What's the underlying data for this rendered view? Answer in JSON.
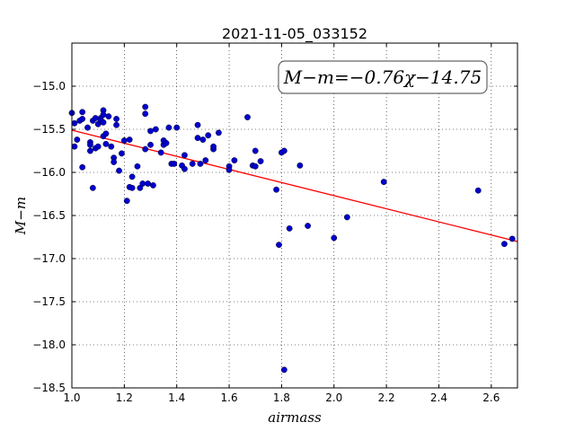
{
  "chart_data": {
    "type": "scatter",
    "title": "2021-11-05_033152",
    "xlabel": "airmass",
    "ylabel": "M−m",
    "xlim": [
      1.0,
      2.7
    ],
    "ylim": [
      -18.5,
      -14.5
    ],
    "y_inverted": true,
    "x_ticks": [
      "1.0",
      "1.2",
      "1.4",
      "1.6",
      "1.8",
      "2.0",
      "2.2",
      "2.4",
      "2.6"
    ],
    "y_ticks": [
      "−15.0",
      "−15.5",
      "−16.0",
      "−16.5",
      "−17.0",
      "−17.5",
      "−18.0",
      "−18.5"
    ],
    "grid": true,
    "annotation": "M−m=−0.76χ−14.75",
    "fit": {
      "slope": -0.76,
      "intercept": -14.75,
      "color": "#ff0000"
    },
    "point_color": "#0000cc",
    "points": [
      [
        1.0,
        -15.31
      ],
      [
        1.01,
        -15.43
      ],
      [
        1.01,
        -15.7
      ],
      [
        1.02,
        -15.62
      ],
      [
        1.03,
        -15.4
      ],
      [
        1.04,
        -15.3
      ],
      [
        1.04,
        -15.38
      ],
      [
        1.04,
        -15.94
      ],
      [
        1.06,
        -15.48
      ],
      [
        1.07,
        -15.65
      ],
      [
        1.07,
        -15.75
      ],
      [
        1.07,
        -15.68
      ],
      [
        1.08,
        -15.4
      ],
      [
        1.08,
        -16.18
      ],
      [
        1.09,
        -15.37
      ],
      [
        1.09,
        -15.72
      ],
      [
        1.1,
        -15.44
      ],
      [
        1.1,
        -15.7
      ],
      [
        1.11,
        -15.37
      ],
      [
        1.11,
        -15.4
      ],
      [
        1.12,
        -15.28
      ],
      [
        1.12,
        -15.33
      ],
      [
        1.12,
        -15.42
      ],
      [
        1.12,
        -15.58
      ],
      [
        1.13,
        -15.55
      ],
      [
        1.13,
        -15.67
      ],
      [
        1.14,
        -15.35
      ],
      [
        1.15,
        -15.7
      ],
      [
        1.16,
        -15.83
      ],
      [
        1.16,
        -15.88
      ],
      [
        1.17,
        -15.38
      ],
      [
        1.17,
        -15.45
      ],
      [
        1.18,
        -15.98
      ],
      [
        1.19,
        -15.78
      ],
      [
        1.2,
        -15.63
      ],
      [
        1.21,
        -16.33
      ],
      [
        1.22,
        -16.17
      ],
      [
        1.22,
        -15.62
      ],
      [
        1.23,
        -16.05
      ],
      [
        1.23,
        -16.18
      ],
      [
        1.25,
        -15.93
      ],
      [
        1.26,
        -16.18
      ],
      [
        1.27,
        -16.13
      ],
      [
        1.28,
        -15.73
      ],
      [
        1.28,
        -15.24
      ],
      [
        1.28,
        -15.32
      ],
      [
        1.29,
        -16.13
      ],
      [
        1.3,
        -15.68
      ],
      [
        1.3,
        -15.52
      ],
      [
        1.31,
        -16.15
      ],
      [
        1.32,
        -15.5
      ],
      [
        1.34,
        -15.77
      ],
      [
        1.35,
        -15.68
      ],
      [
        1.35,
        -15.63
      ],
      [
        1.36,
        -15.66
      ],
      [
        1.37,
        -15.48
      ],
      [
        1.38,
        -15.9
      ],
      [
        1.39,
        -15.9
      ],
      [
        1.4,
        -15.48
      ],
      [
        1.42,
        -15.92
      ],
      [
        1.43,
        -15.8
      ],
      [
        1.43,
        -15.96
      ],
      [
        1.46,
        -15.9
      ],
      [
        1.48,
        -15.45
      ],
      [
        1.48,
        -15.6
      ],
      [
        1.49,
        -15.9
      ],
      [
        1.5,
        -15.62
      ],
      [
        1.51,
        -15.86
      ],
      [
        1.52,
        -15.57
      ],
      [
        1.54,
        -15.73
      ],
      [
        1.54,
        -15.7
      ],
      [
        1.56,
        -15.54
      ],
      [
        1.6,
        -15.93
      ],
      [
        1.6,
        -15.97
      ],
      [
        1.62,
        -15.86
      ],
      [
        1.67,
        -15.36
      ],
      [
        1.69,
        -15.92
      ],
      [
        1.7,
        -15.75
      ],
      [
        1.7,
        -15.93
      ],
      [
        1.72,
        -15.87
      ],
      [
        1.78,
        -16.2
      ],
      [
        1.79,
        -16.84
      ],
      [
        1.8,
        -15.77
      ],
      [
        1.81,
        -15.75
      ],
      [
        1.81,
        -18.29
      ],
      [
        1.83,
        -16.65
      ],
      [
        1.87,
        -15.92
      ],
      [
        1.9,
        -16.62
      ],
      [
        2.0,
        -16.76
      ],
      [
        2.05,
        -16.52
      ],
      [
        2.19,
        -16.11
      ],
      [
        2.55,
        -16.21
      ],
      [
        2.65,
        -16.83
      ],
      [
        2.68,
        -16.77
      ]
    ]
  }
}
